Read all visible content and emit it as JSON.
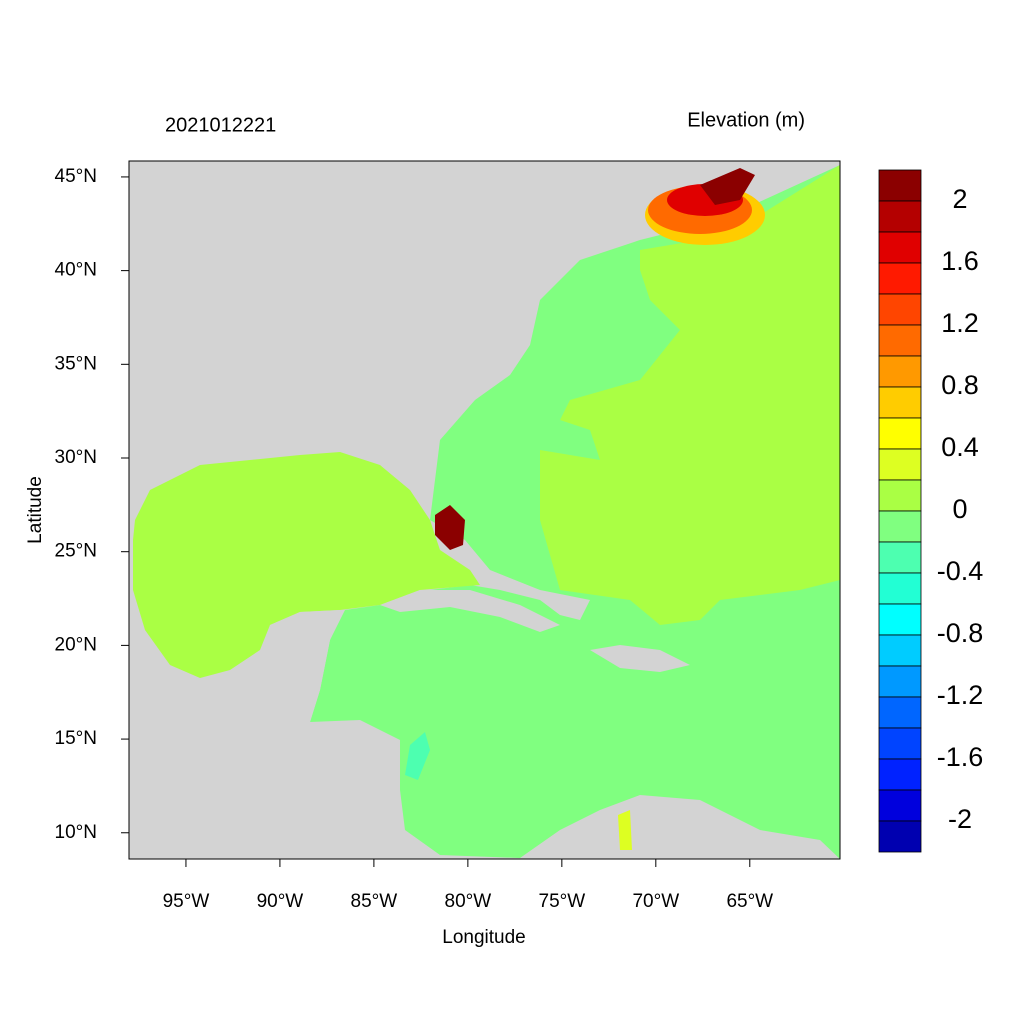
{
  "chart_data": {
    "type": "map",
    "title": "2021012221",
    "subtitle": "Elevation (m)",
    "x_label": "Longitude",
    "y_label": "Latitude",
    "xlim": [
      -98.03,
      -60.2
    ],
    "ylim": [
      8.6,
      45.85
    ],
    "xticks": [
      {
        "value": -95,
        "label": "95°W"
      },
      {
        "value": -90,
        "label": "90°W"
      },
      {
        "value": -85,
        "label": "85°W"
      },
      {
        "value": -80,
        "label": "80°W"
      },
      {
        "value": -75,
        "label": "75°W"
      },
      {
        "value": -70,
        "label": "70°W"
      },
      {
        "value": -65,
        "label": "65°W"
      }
    ],
    "yticks": [
      {
        "value": 10,
        "label": "10°N"
      },
      {
        "value": 15,
        "label": "15°N"
      },
      {
        "value": 20,
        "label": "20°N"
      },
      {
        "value": 25,
        "label": "25°N"
      },
      {
        "value": 30,
        "label": "30°N"
      },
      {
        "value": 35,
        "label": "35°N"
      },
      {
        "value": 40,
        "label": "40°N"
      },
      {
        "value": 45,
        "label": "45°N"
      }
    ],
    "colorbar": {
      "levels": [
        2.2,
        2,
        1.8,
        1.6,
        1.4,
        1.2,
        1,
        0.8,
        0.6,
        0.4,
        0.2,
        0,
        -0.2,
        -0.4,
        -0.6,
        -0.8,
        -1,
        -1.2,
        -1.4,
        -1.6,
        -1.8,
        -2,
        -2.2
      ],
      "colors": [
        "#8b0000",
        "#b40000",
        "#e00000",
        "#ff1a00",
        "#ff4500",
        "#ff6a00",
        "#ff9900",
        "#ffcc00",
        "#ffff00",
        "#ddff22",
        "#aaff44",
        "#80ff80",
        "#4dffb0",
        "#22ffd4",
        "#00ffff",
        "#00ccff",
        "#0099ff",
        "#0066ff",
        "#0044ff",
        "#0022ff",
        "#0000dd",
        "#0000b0"
      ],
      "ticks": [
        2,
        1.6,
        1.2,
        0.8,
        0.4,
        0,
        -0.4,
        -0.8,
        -1.2,
        -1.6,
        -2
      ]
    }
  }
}
